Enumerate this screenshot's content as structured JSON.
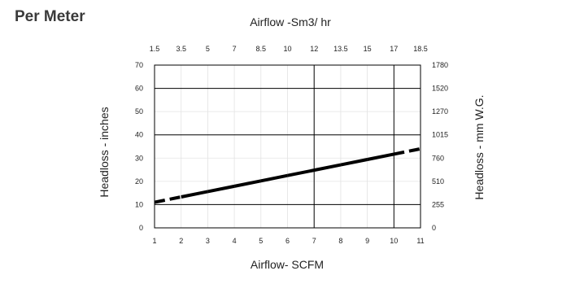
{
  "page": {
    "title": "Per Meter"
  },
  "chart_data": {
    "type": "line",
    "title": "",
    "xlabel": "Airflow- SCFM",
    "ylabel": "Headloss - inches",
    "x2label": "Airflow -Sm3/ hr",
    "y2label": "Headloss - mm W.G.",
    "xlim": [
      1,
      11
    ],
    "ylim": [
      0,
      70
    ],
    "x_ticks": [
      1,
      2,
      3,
      4,
      5,
      6,
      7,
      8,
      9,
      10,
      11
    ],
    "y_ticks": [
      0,
      10,
      20,
      30,
      40,
      50,
      60,
      70
    ],
    "x2_ticks": [
      "1.5",
      "3.5",
      "5",
      "7",
      "8.5",
      "10",
      "12",
      "13.5",
      "15",
      "17",
      "18.5"
    ],
    "y2_ticks": [
      "0",
      "255",
      "510",
      "760",
      "1015",
      "1270",
      "1520",
      "1780"
    ],
    "grid": true,
    "series": [
      {
        "x": [
          1,
          2,
          3,
          4,
          5,
          6,
          7,
          8,
          9,
          10,
          11
        ],
        "y": [
          11,
          13.3,
          15.6,
          17.9,
          20.2,
          22.5,
          24.8,
          27.1,
          29.4,
          31.7,
          34
        ],
        "color": "#000000",
        "dashed_ranges": [
          [
            1,
            2
          ],
          [
            10,
            11
          ]
        ]
      }
    ]
  }
}
